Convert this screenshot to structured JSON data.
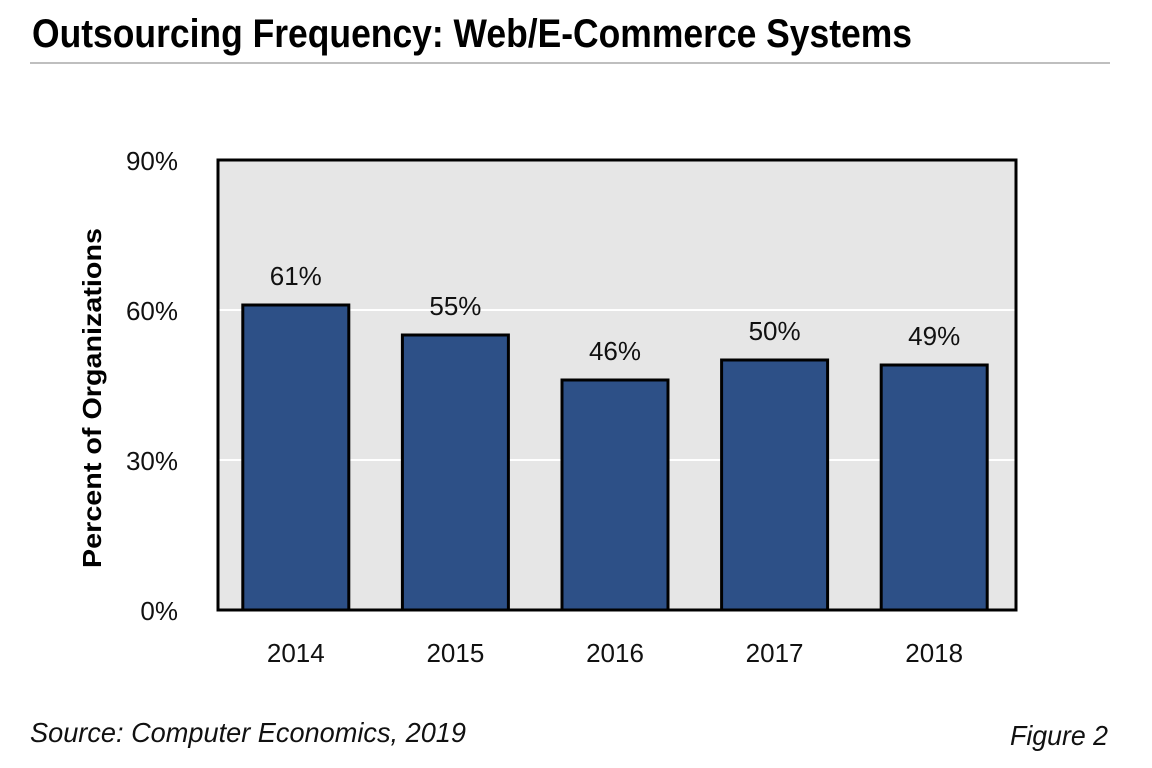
{
  "chart_data": {
    "type": "bar",
    "title": "Outsourcing Frequency: Web/E-Commerce Systems",
    "xlabel": "",
    "ylabel": "Percent of Organizations",
    "categories": [
      "2014",
      "2015",
      "2016",
      "2017",
      "2018"
    ],
    "values": [
      61,
      55,
      46,
      50,
      49
    ],
    "data_labels": [
      "61%",
      "55%",
      "46%",
      "50%",
      "49%"
    ],
    "ylim": [
      0,
      90
    ],
    "yticks": [
      0,
      30,
      60,
      90
    ],
    "ytick_labels": [
      "0%",
      "30%",
      "60%",
      "90%"
    ],
    "grid": true,
    "legend": "none",
    "colors": {
      "bar": "#2d5087",
      "plot_background": "#e6e6e6",
      "gridline": "#ffffff"
    }
  },
  "footer": {
    "source": "Source: Computer Economics, 2019",
    "figure": "Figure 2"
  }
}
